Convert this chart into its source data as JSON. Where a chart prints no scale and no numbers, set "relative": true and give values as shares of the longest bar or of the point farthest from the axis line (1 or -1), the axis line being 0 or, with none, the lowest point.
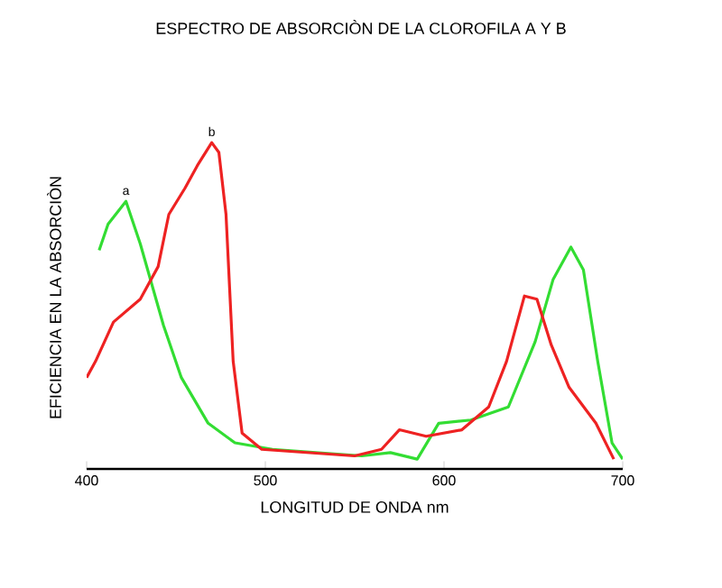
{
  "chart_data": {
    "type": "line",
    "title": "ESPECTRO DE ABSORCIÒN DE LA CLOROFILA  A  Y  B",
    "xlabel": "LONGITUD DE ONDA  nm",
    "ylabel": "EFICIENCIA EN LA ABSORCIÒN",
    "relative": true,
    "xlim": [
      400,
      700
    ],
    "xticks": [
      400,
      500,
      600,
      700
    ],
    "series": [
      {
        "name": "a",
        "color": "#33dd33",
        "x": [
          407,
          412,
          422,
          430,
          443,
          453,
          468,
          483,
          504,
          554,
          570,
          585,
          597,
          615,
          636,
          651,
          661,
          671,
          678,
          686,
          694,
          700
        ],
        "values": [
          0.67,
          0.75,
          0.82,
          0.69,
          0.44,
          0.28,
          0.14,
          0.08,
          0.06,
          0.04,
          0.05,
          0.03,
          0.14,
          0.15,
          0.19,
          0.39,
          0.58,
          0.68,
          0.61,
          0.33,
          0.08,
          0.03
        ]
      },
      {
        "name": "b",
        "color": "#ee2222",
        "x": [
          400,
          405,
          415,
          430,
          440,
          446,
          455,
          462,
          470,
          474,
          478,
          482,
          487,
          498,
          550,
          565,
          575,
          590,
          610,
          625,
          635,
          645,
          652,
          660,
          670,
          685,
          695
        ],
        "values": [
          0.28,
          0.33,
          0.45,
          0.52,
          0.62,
          0.78,
          0.86,
          0.93,
          1.0,
          0.97,
          0.78,
          0.33,
          0.11,
          0.06,
          0.04,
          0.06,
          0.12,
          0.1,
          0.12,
          0.19,
          0.33,
          0.53,
          0.52,
          0.38,
          0.25,
          0.14,
          0.03
        ]
      }
    ]
  }
}
